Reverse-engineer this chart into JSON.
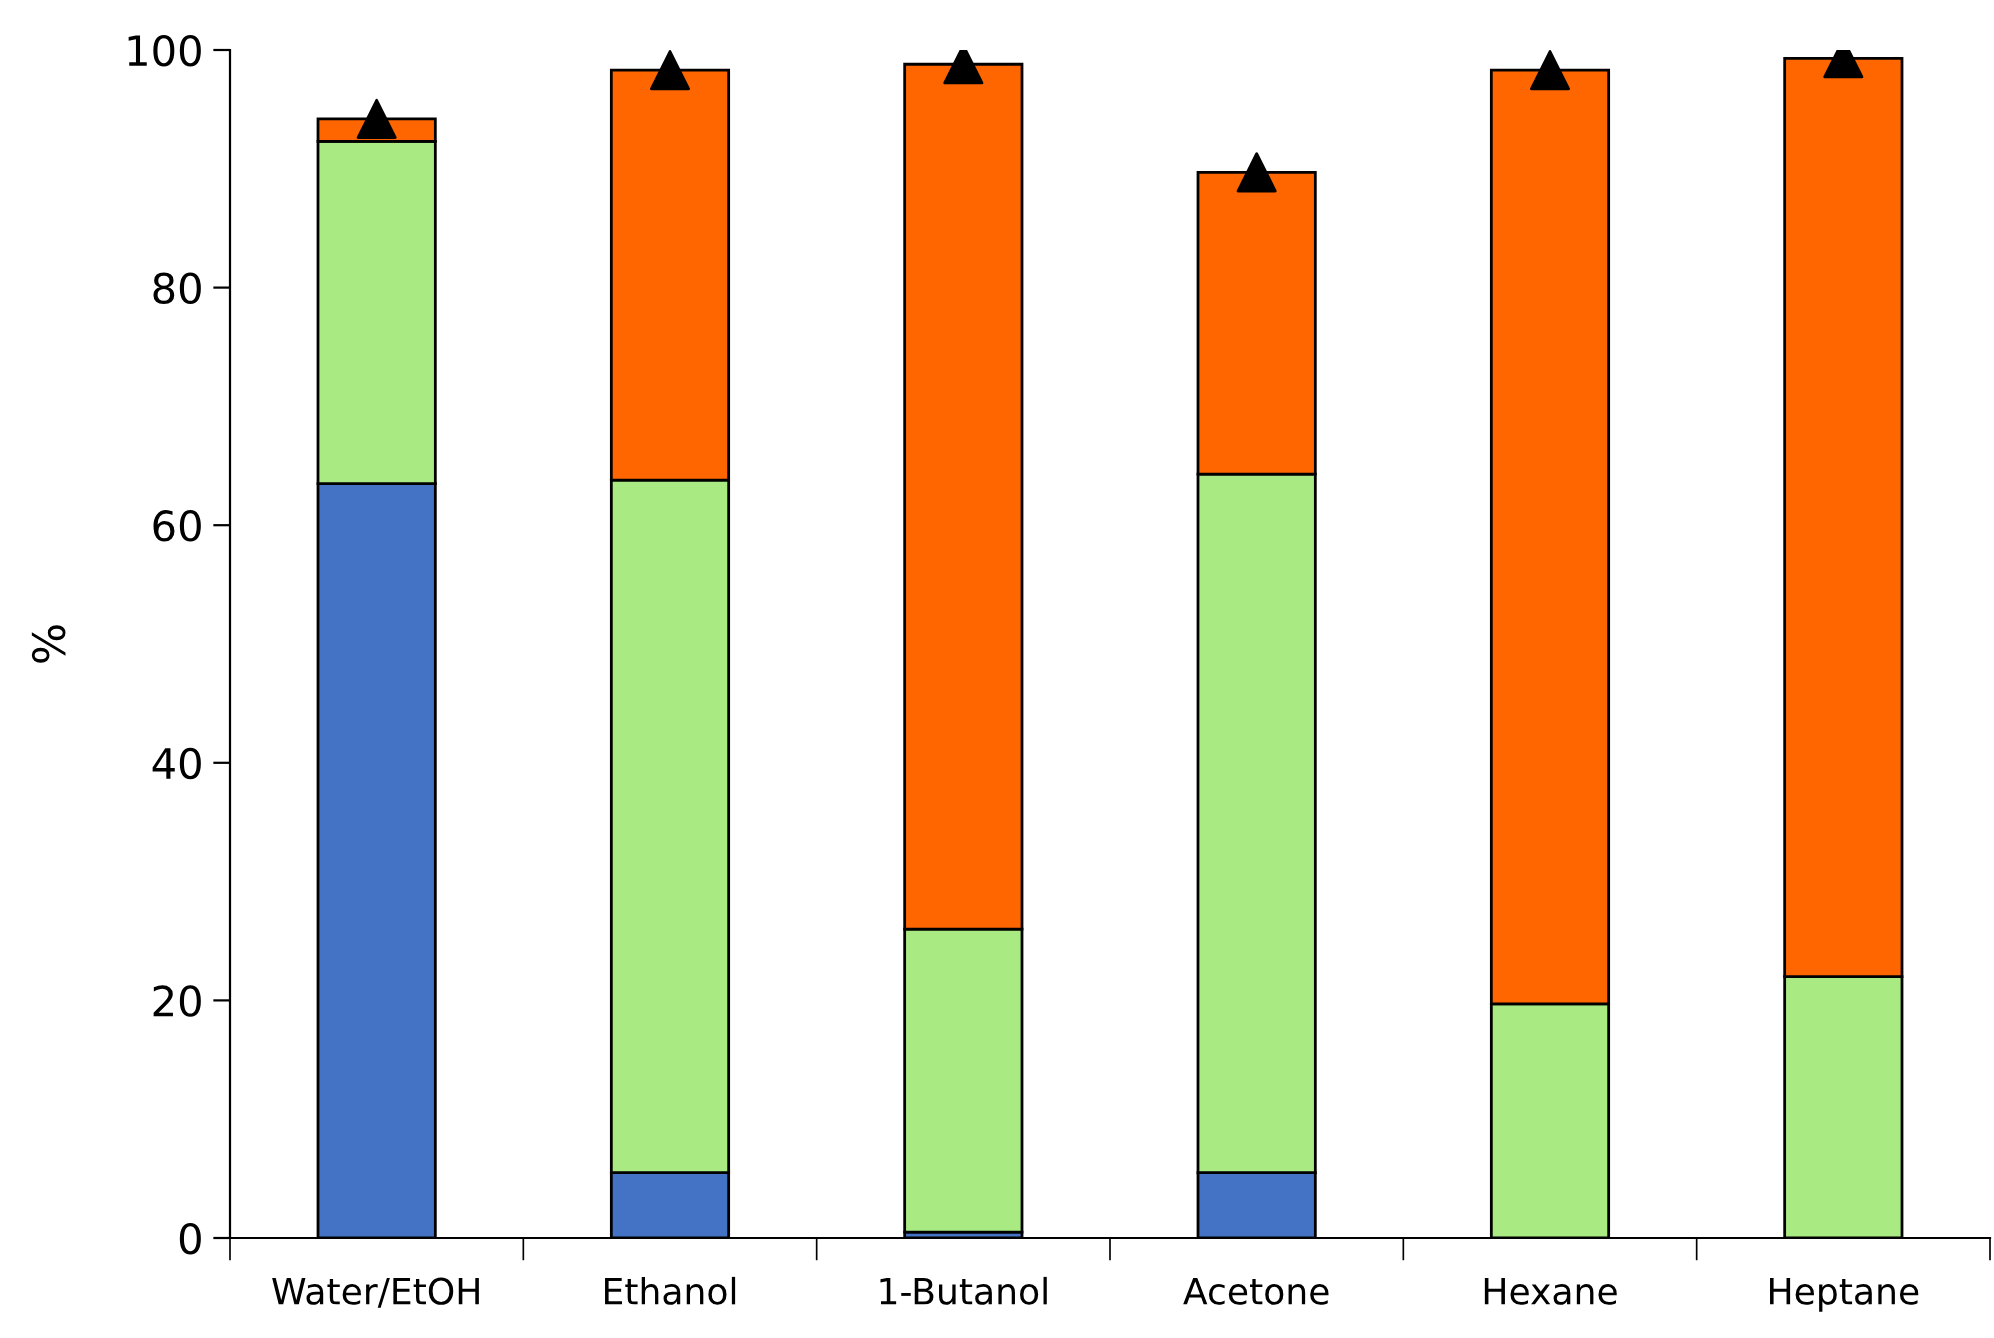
{
  "chart_data": {
    "type": "bar",
    "stacked": true,
    "ylabel": "%",
    "categories": [
      "Water/EtOH",
      "Ethanol",
      "1-Butanol",
      "Acetone",
      "Hexane",
      "Heptane"
    ],
    "series": [
      {
        "color": "#4472c4",
        "values": [
          63.5,
          5.5,
          0.5,
          5.5,
          0,
          0
        ]
      },
      {
        "color": "#a9eb82",
        "values": [
          28.8,
          58.3,
          25.5,
          58.8,
          19.7,
          22.0
        ]
      },
      {
        "color": "#ff6600",
        "values": [
          1.9,
          34.5,
          72.8,
          25.4,
          78.6,
          77.3
        ]
      },
      {
        "type": "scatter",
        "color": "#000000",
        "marker": "triangle",
        "x": [
          "Water/EtOH",
          "Ethanol",
          "1-Butanol",
          "Acetone",
          "Hexane",
          "Heptane"
        ],
        "values": [
          94.2,
          98.3,
          98.8,
          89.7,
          98.3,
          99.3
        ]
      }
    ],
    "ylim": [
      0,
      100
    ],
    "yticks": [
      0,
      20,
      40,
      60,
      80,
      100
    ],
    "grid": false,
    "legend": false
  }
}
